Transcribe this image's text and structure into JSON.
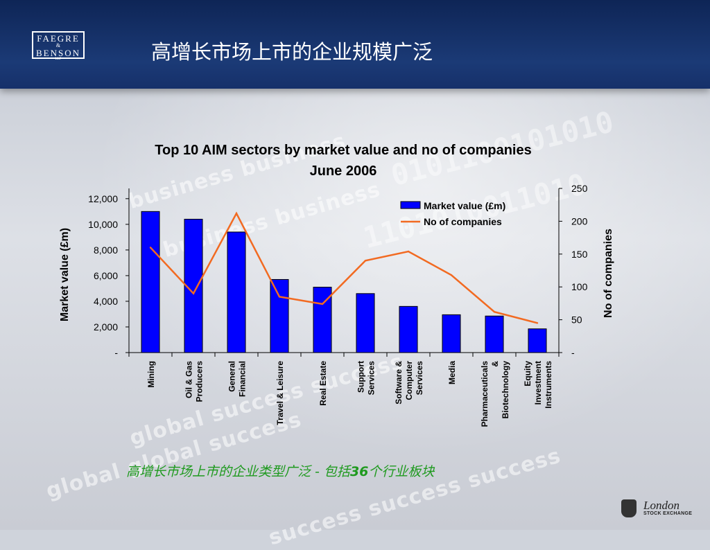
{
  "header": {
    "title": "高增长市场上市的企业规模广泛",
    "logo": {
      "line1": "FAEGRE",
      "amp": "&",
      "line2": "BENSON",
      "llp": "LLP"
    }
  },
  "footer": {
    "caption_before": "高增长市场上市的企业类型广泛 - 包括",
    "caption_number": "36",
    "caption_after": "个行业板块",
    "caption_color": "#1f9a1f",
    "brand_name": "London",
    "brand_sub": "STOCK EXCHANGE"
  },
  "chart_data": {
    "type": "bar",
    "title": "Top 10 AIM sectors by market value and no of companies",
    "subtitle": "June 2006",
    "categories": [
      [
        "Mining"
      ],
      [
        "Oil & Gas",
        "Producers"
      ],
      [
        "General",
        "Financial"
      ],
      [
        "Travel & Leisure"
      ],
      [
        "Real Estate"
      ],
      [
        "Support",
        "Services"
      ],
      [
        "Software &",
        "Computer",
        "Services"
      ],
      [
        "Media"
      ],
      [
        "Pharmaceuticals",
        "&",
        "Biotechnology"
      ],
      [
        "Equity",
        "Investment",
        "Instruments"
      ]
    ],
    "series": [
      {
        "name": "Market value (£m)",
        "kind": "bar",
        "axis": "left",
        "color": "#0000ff",
        "values": [
          11000,
          10400,
          9400,
          5700,
          5100,
          4600,
          3600,
          2950,
          2850,
          1850
        ]
      },
      {
        "name": "No of companies",
        "kind": "line",
        "axis": "right",
        "color": "#f26a21",
        "values": [
          160,
          90,
          212,
          85,
          74,
          140,
          154,
          118,
          62,
          45
        ]
      }
    ],
    "ylabel": "Market value (£m)",
    "y2label": "No of companies",
    "ylim": [
      0,
      12800
    ],
    "y2lim": [
      0,
      250
    ],
    "yticks": [
      0,
      2000,
      4000,
      6000,
      8000,
      10000,
      12000
    ],
    "ytick_labels": [
      "-",
      "2,000",
      "4,000",
      "6,000",
      "8,000",
      "10,000",
      "12,000"
    ],
    "y2ticks": [
      0,
      50,
      100,
      150,
      200,
      250
    ],
    "y2tick_labels": [
      "-",
      "50",
      "100",
      "150",
      "200",
      "250"
    ],
    "legend_position": "top-right",
    "grid": false
  }
}
